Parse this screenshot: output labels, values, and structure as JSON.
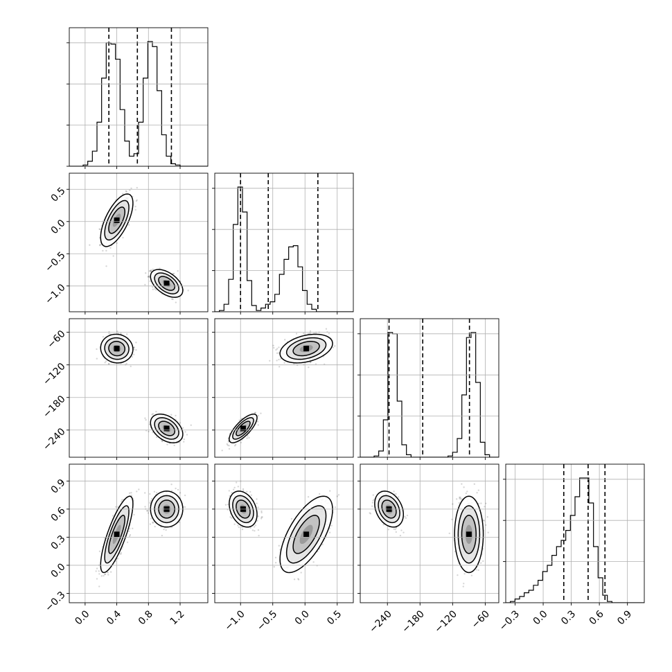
{
  "chart_data": {
    "type": "corner",
    "n_params": 4,
    "grid": true,
    "params": [
      {
        "range": [
          -0.2,
          1.55
        ],
        "ticks": [
          0.0,
          0.4,
          0.8,
          1.2
        ],
        "tick_labels": [
          "0.0",
          "0.4",
          "0.8",
          "1.2"
        ],
        "quantiles": [
          0.3,
          0.66,
          1.09
        ]
      },
      {
        "range": [
          -1.4,
          0.75
        ],
        "ticks": [
          -1.0,
          -0.5,
          0.0,
          0.5
        ],
        "tick_labels": [
          "−1.0",
          "−0.5",
          "0.0",
          "0.5"
        ],
        "quantiles": [
          -1.0,
          -0.57,
          0.2
        ]
      },
      {
        "range": [
          -290,
          -35
        ],
        "ticks": [
          -240,
          -180,
          -120,
          -60
        ],
        "tick_labels": [
          "−240",
          "−180",
          "−120",
          "−60"
        ],
        "quantiles": [
          -237,
          -175,
          -89
        ]
      },
      {
        "range": [
          -0.4,
          1.08
        ],
        "ticks": [
          -0.3,
          0.0,
          0.3,
          0.6,
          0.9
        ],
        "tick_labels": [
          "−0.3",
          "0.0",
          "0.3",
          "0.6",
          "0.9"
        ],
        "quantiles": [
          0.22,
          0.48,
          0.66
        ]
      }
    ],
    "modes": [
      {
        "weight": 0.5,
        "mean": [
          0.4,
          0.02,
          -90,
          0.33
        ],
        "std": [
          0.085,
          0.17,
          11,
          0.17
        ],
        "corr": [
          [
            1,
            0.65,
            -0.05,
            0.8
          ],
          [
            0.65,
            1,
            0.35,
            0.65
          ],
          [
            -0.05,
            0.35,
            1,
            0.0
          ],
          [
            0.8,
            0.65,
            0.0,
            1
          ]
        ]
      },
      {
        "weight": 0.5,
        "mean": [
          1.03,
          -0.96,
          -237,
          0.6
        ],
        "std": [
          0.085,
          0.09,
          11,
          0.08
        ],
        "corr": [
          [
            1,
            -0.5,
            -0.4,
            0.0
          ],
          [
            -0.5,
            1,
            0.75,
            -0.3
          ],
          [
            -0.4,
            0.75,
            1,
            -0.3
          ],
          [
            0.0,
            -0.3,
            -0.3,
            1
          ]
        ]
      }
    ],
    "histograms": [
      {
        "bins": [
          -0.2,
          1.55
        ],
        "counts": [
          0,
          0,
          0,
          1,
          4,
          12,
          35,
          70,
          98,
          97,
          85,
          45,
          20,
          8,
          10,
          35,
          70,
          99,
          95,
          60,
          25,
          8,
          2,
          1,
          0,
          0,
          0,
          0,
          0,
          0
        ]
      },
      {
        "bins": [
          -1.4,
          0.75
        ],
        "counts": [
          0,
          1,
          6,
          26,
          70,
          100,
          80,
          25,
          5,
          1,
          3,
          6,
          8,
          14,
          30,
          42,
          52,
          53,
          36,
          17,
          6,
          2,
          0,
          0,
          0,
          0,
          0,
          0,
          0,
          0
        ]
      },
      {
        "bins": [
          -290,
          -35
        ],
        "counts": [
          0,
          0,
          0,
          1,
          5,
          30,
          100,
          99,
          45,
          10,
          2,
          0,
          0,
          0,
          0,
          0,
          0,
          0,
          0,
          1,
          4,
          15,
          50,
          96,
          100,
          60,
          12,
          2,
          0,
          0
        ]
      },
      {
        "bins": [
          -0.4,
          1.08
        ],
        "counts": [
          0,
          1,
          3,
          5,
          8,
          10,
          14,
          18,
          25,
          30,
          38,
          45,
          50,
          58,
          70,
          85,
          100,
          100,
          80,
          45,
          20,
          6,
          1,
          0,
          0,
          0,
          0,
          0,
          0,
          0
        ]
      }
    ]
  }
}
